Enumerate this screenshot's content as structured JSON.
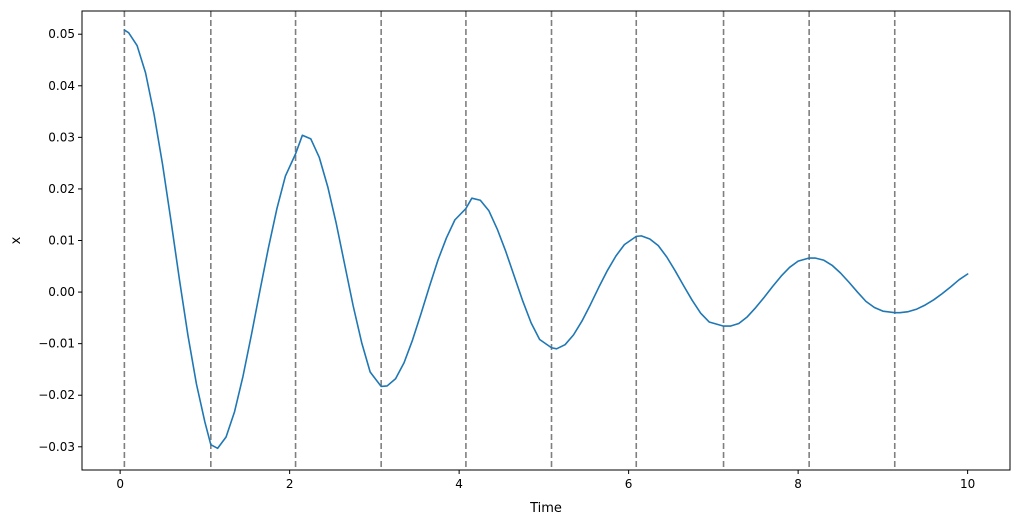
{
  "chart_data": {
    "type": "line",
    "title": "",
    "xlabel": "Time",
    "ylabel": "x",
    "xlim": [
      -0.45,
      10.5
    ],
    "ylim": [
      -0.0345,
      0.0545
    ],
    "xticks": [
      0,
      2,
      4,
      6,
      8,
      10
    ],
    "xtick_labels": [
      "0",
      "2",
      "4",
      "6",
      "8",
      "10"
    ],
    "yticks": [
      -0.03,
      -0.02,
      -0.01,
      0.0,
      0.01,
      0.02,
      0.03,
      0.04,
      0.05
    ],
    "ytick_labels": [
      "−0.03",
      "−0.02",
      "−0.01",
      "0.00",
      "0.01",
      "0.02",
      "0.03",
      "0.04",
      "0.05"
    ],
    "grid": false,
    "series": [
      {
        "color": "#1f77b4",
        "x": [
          0.05,
          0.1,
          0.2,
          0.3,
          0.4,
          0.5,
          0.6,
          0.7,
          0.8,
          0.9,
          1.0,
          1.07,
          1.15,
          1.25,
          1.35,
          1.45,
          1.55,
          1.65,
          1.75,
          1.85,
          1.95,
          2.07,
          2.15,
          2.25,
          2.35,
          2.45,
          2.55,
          2.65,
          2.75,
          2.85,
          2.95,
          3.08,
          3.15,
          3.25,
          3.35,
          3.45,
          3.55,
          3.65,
          3.75,
          3.85,
          3.95,
          4.08,
          4.15,
          4.25,
          4.35,
          4.45,
          4.55,
          4.65,
          4.75,
          4.85,
          4.95,
          5.09,
          5.15,
          5.25,
          5.35,
          5.45,
          5.55,
          5.65,
          5.75,
          5.85,
          5.95,
          6.09,
          6.15,
          6.25,
          6.35,
          6.45,
          6.55,
          6.65,
          6.75,
          6.85,
          6.95,
          7.12,
          7.2,
          7.3,
          7.4,
          7.5,
          7.6,
          7.7,
          7.8,
          7.9,
          8.0,
          8.13,
          8.2,
          8.3,
          8.4,
          8.5,
          8.6,
          8.7,
          8.8,
          8.9,
          9.0,
          9.14,
          9.2,
          9.3,
          9.4,
          9.5,
          9.6,
          9.7,
          9.8,
          9.9,
          10.0
        ],
        "y": [
          0.0508,
          0.0503,
          0.0478,
          0.0425,
          0.0345,
          0.0248,
          0.0138,
          0.0024,
          -0.0084,
          -0.0178,
          -0.0252,
          -0.0296,
          -0.0303,
          -0.0281,
          -0.0232,
          -0.0163,
          -0.0082,
          0.0003,
          0.0086,
          0.0162,
          0.0225,
          0.0268,
          0.0304,
          0.0297,
          0.0261,
          0.0204,
          0.0133,
          0.0053,
          -0.0027,
          -0.0098,
          -0.0155,
          -0.0183,
          -0.0182,
          -0.0168,
          -0.0137,
          -0.0093,
          -0.0042,
          0.0011,
          0.0062,
          0.0105,
          0.014,
          0.0162,
          0.0182,
          0.0178,
          0.0158,
          0.0122,
          0.0079,
          0.0031,
          -0.0017,
          -0.006,
          -0.0092,
          -0.0108,
          -0.011,
          -0.0102,
          -0.0083,
          -0.0056,
          -0.0024,
          0.001,
          0.0042,
          0.007,
          0.0092,
          0.0108,
          0.0109,
          0.0103,
          0.009,
          0.0068,
          0.0041,
          0.0012,
          -0.0016,
          -0.0041,
          -0.0058,
          -0.0066,
          -0.0066,
          -0.0061,
          -0.0048,
          -0.003,
          -0.001,
          0.0011,
          0.0031,
          0.0048,
          0.006,
          0.0066,
          0.0066,
          0.0062,
          0.0052,
          0.0037,
          0.0019,
          0.0,
          -0.0018,
          -0.003,
          -0.0037,
          -0.004,
          -0.004,
          -0.0038,
          -0.0033,
          -0.0025,
          -0.0015,
          -0.0003,
          0.001,
          0.0024,
          0.0035
        ]
      }
    ],
    "vlines": {
      "style": "dashed",
      "color": "#7f7f7f",
      "x": [
        0.05,
        1.07,
        2.07,
        3.08,
        4.08,
        5.09,
        6.09,
        7.12,
        8.13,
        9.14
      ]
    }
  }
}
